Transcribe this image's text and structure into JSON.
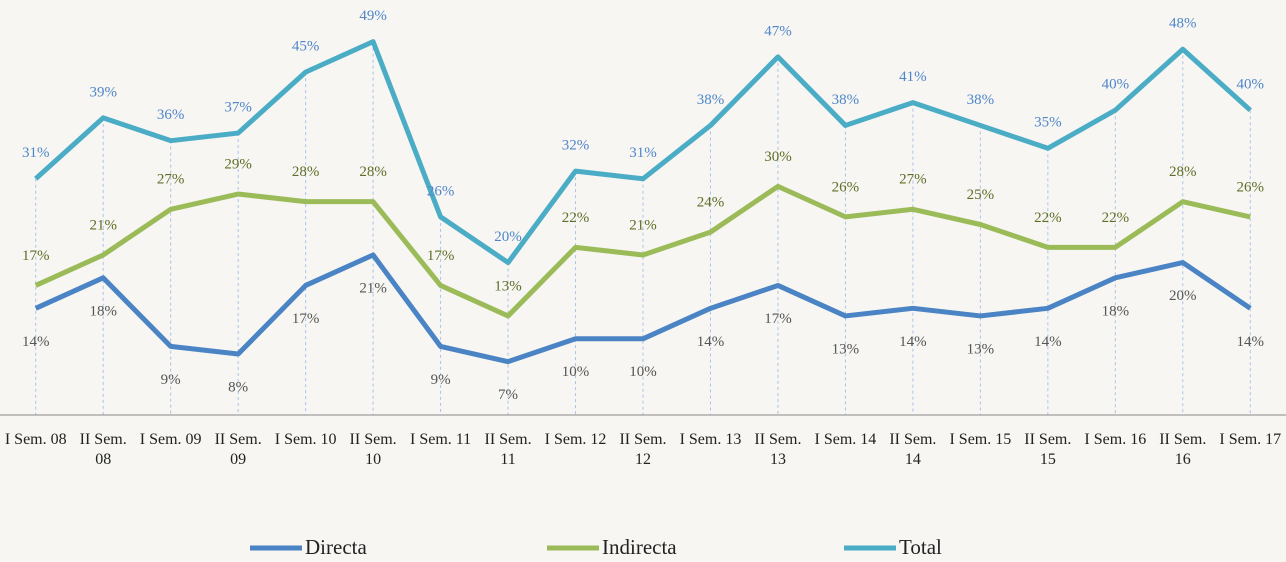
{
  "chart_data": {
    "type": "line",
    "categories": [
      "I Sem. 08",
      "II Sem. 08",
      "I Sem. 09",
      "II Sem. 09",
      "I Sem. 10",
      "II Sem. 10",
      "I Sem. 11",
      "II Sem. 11",
      "I Sem. 12",
      "II Sem. 12",
      "I Sem. 13",
      "II Sem. 13",
      "I Sem. 14",
      "II Sem. 14",
      "I Sem. 15",
      "II Sem. 15",
      "I Sem. 16",
      "II Sem. 16",
      "I Sem. 17"
    ],
    "series": [
      {
        "name": "Directa",
        "color": "#4a84c4",
        "values": [
          14,
          18,
          9,
          8,
          17,
          21,
          9,
          7,
          10,
          10,
          14,
          17,
          13,
          14,
          13,
          14,
          18,
          20,
          14
        ],
        "value_labels": [
          "14%",
          "18%",
          "9%",
          "8%",
          "17%",
          "21%",
          "9%",
          "7%",
          "10%",
          "10%",
          "14%",
          "17%",
          "13%",
          "14%",
          "13%",
          "14%",
          "18%",
          "20%",
          "14%"
        ]
      },
      {
        "name": "Indirecta",
        "color": "#9bbb59",
        "values": [
          17,
          21,
          27,
          29,
          28,
          28,
          17,
          13,
          22,
          21,
          24,
          30,
          26,
          27,
          25,
          22,
          22,
          28,
          26
        ],
        "value_labels": [
          "17%",
          "21%",
          "27%",
          "29%",
          "28%",
          "28%",
          "17%",
          "13%",
          "22%",
          "21%",
          "24%",
          "30%",
          "26%",
          "27%",
          "25%",
          "22%",
          "22%",
          "28%",
          "26%"
        ]
      },
      {
        "name": "Total",
        "color": "#4bacc6",
        "values": [
          31,
          39,
          36,
          37,
          45,
          49,
          26,
          20,
          32,
          31,
          38,
          47,
          38,
          41,
          38,
          35,
          40,
          48,
          40
        ],
        "value_labels": [
          "31%",
          "39%",
          "36%",
          "37%",
          "45%",
          "49%",
          "26%",
          "20%",
          "32%",
          "31%",
          "38%",
          "47%",
          "38%",
          "41%",
          "38%",
          "35%",
          "40%",
          "48%",
          "40%"
        ]
      }
    ],
    "ylim": [
      0,
      50
    ],
    "legend": "bottom"
  }
}
